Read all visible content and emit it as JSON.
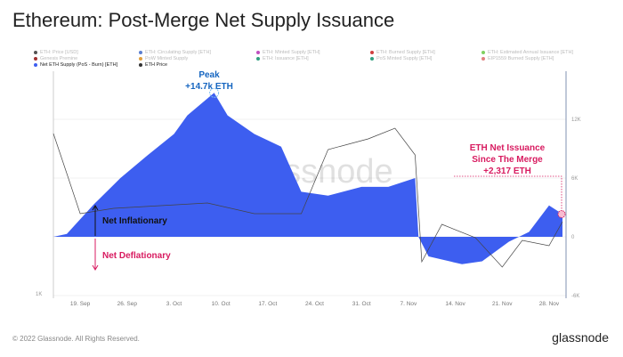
{
  "title": "Ethereum: Post-Merge Net Supply Issuance",
  "legend": [
    {
      "label": "ETH: Price [USD]",
      "color": "#555",
      "active": false
    },
    {
      "label": "ETH: Circulating Supply [ETH]",
      "color": "#5b7fd0",
      "active": false
    },
    {
      "label": "ETH: Minted Supply [ETH]",
      "color": "#c050c0",
      "active": false
    },
    {
      "label": "ETH: Burned Supply [ETH]",
      "color": "#d04040",
      "active": false
    },
    {
      "label": "ETH: Estimated Annual Issuance [ETH]",
      "color": "#80d060",
      "active": false
    },
    {
      "label": "Genesis Premine",
      "color": "#a03030",
      "active": false
    },
    {
      "label": "PoW Minted Supply",
      "color": "#e0a040",
      "active": false
    },
    {
      "label": "ETH: Issuance [ETH]",
      "color": "#30a080",
      "active": false
    },
    {
      "label": "PoS Minted Supply [ETH]",
      "color": "#30a080",
      "active": false
    },
    {
      "label": "EIP1559 Burned Supply [ETH]",
      "color": "#e08080",
      "active": false
    },
    {
      "label": "Net ETH Supply (PoS - Burn) [ETH]",
      "color": "#3d5ef0",
      "active": true
    },
    {
      "label": "ETH Price",
      "color": "#333",
      "active": true
    }
  ],
  "annotations": {
    "peak_title": "Peak",
    "peak_value": "+14.7k ETH",
    "net_line1": "ETH Net Issuance",
    "net_line2": "Since The Merge",
    "net_value": "+2,317 ETH",
    "inflationary": "Net Inflationary",
    "deflationary": "Net Deflationary"
  },
  "watermark": "glassnode",
  "footer": "© 2022 Glassnode. All Rights Reserved.",
  "brand": "glassnode",
  "colors": {
    "area": "#3d5ef0",
    "price": "#444",
    "annotation": "#d81b60",
    "peak": "#1565c0"
  },
  "chart_data": {
    "type": "area",
    "x_ticks": [
      "19. Sep",
      "26. Sep",
      "3. Oct",
      "10. Oct",
      "17. Oct",
      "24. Oct",
      "31. Oct",
      "7. Nov",
      "14. Nov",
      "21. Nov",
      "28. Nov"
    ],
    "right_axis_ticks": [
      "12K",
      "6K",
      "0",
      "-6K"
    ],
    "right_ylim": [
      -6000,
      18000
    ],
    "left_axis_ticks": [
      "1K"
    ],
    "series": [
      {
        "name": "Net ETH Supply (PoS - Burn) [ETH]",
        "axis": "right",
        "x": [
          "2022-09-15",
          "2022-09-17",
          "2022-09-21",
          "2022-09-25",
          "2022-09-29",
          "2022-10-03",
          "2022-10-05",
          "2022-10-09",
          "2022-10-11",
          "2022-10-15",
          "2022-10-19",
          "2022-10-22",
          "2022-10-26",
          "2022-10-31",
          "2022-11-04",
          "2022-11-08",
          "2022-11-08T12",
          "2022-11-10",
          "2022-11-15",
          "2022-11-18",
          "2022-11-22",
          "2022-11-25",
          "2022-11-28",
          "2022-11-30"
        ],
        "y": [
          0,
          300,
          3300,
          6000,
          8300,
          10500,
          12400,
          14700,
          12400,
          10500,
          9200,
          4600,
          4200,
          5100,
          5100,
          6000,
          0,
          -2000,
          -2800,
          -2500,
          -500,
          500,
          3200,
          2317
        ]
      },
      {
        "name": "ETH Price",
        "axis": "left",
        "x": [
          "2022-09-15",
          "2022-09-17",
          "2022-09-19",
          "2022-09-24",
          "2022-10-01",
          "2022-10-08",
          "2022-10-15",
          "2022-10-22",
          "2022-10-26",
          "2022-11-01",
          "2022-11-05",
          "2022-11-08",
          "2022-11-09",
          "2022-11-12",
          "2022-11-17",
          "2022-11-21",
          "2022-11-24",
          "2022-11-28",
          "2022-11-30"
        ],
        "y": [
          1600,
          1450,
          1300,
          1320,
          1330,
          1340,
          1300,
          1300,
          1540,
          1580,
          1620,
          1520,
          1120,
          1260,
          1210,
          1100,
          1200,
          1180,
          1270
        ]
      }
    ]
  }
}
